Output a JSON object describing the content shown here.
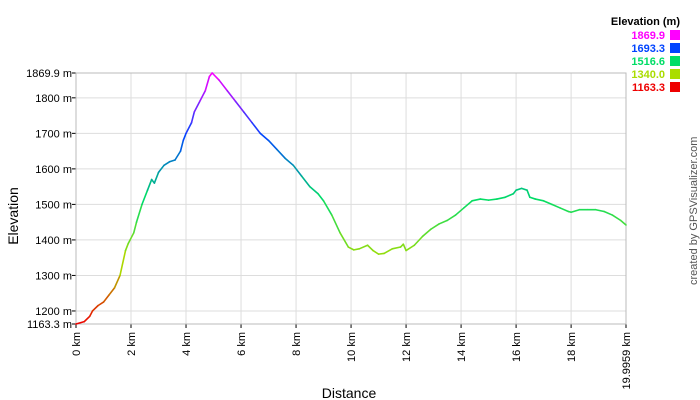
{
  "chart_data": {
    "type": "line",
    "xlabel": "Distance",
    "ylabel": "Elevation",
    "xlim": [
      0,
      19.9959
    ],
    "ylim": [
      1163.3,
      1869.9
    ],
    "x_ticks": [
      {
        "value": 0,
        "label": "0 km"
      },
      {
        "value": 2,
        "label": "2 km"
      },
      {
        "value": 4,
        "label": "4 km"
      },
      {
        "value": 6,
        "label": "6 km"
      },
      {
        "value": 8,
        "label": "8 km"
      },
      {
        "value": 10,
        "label": "10 km"
      },
      {
        "value": 12,
        "label": "12 km"
      },
      {
        "value": 14,
        "label": "14 km"
      },
      {
        "value": 16,
        "label": "16 km"
      },
      {
        "value": 18,
        "label": "18 km"
      },
      {
        "value": 19.9959,
        "label": "19.9959 km"
      }
    ],
    "y_ticks": [
      {
        "value": 1163.3,
        "label": "1163.3 m"
      },
      {
        "value": 1200,
        "label": "1200 m"
      },
      {
        "value": 1300,
        "label": "1300 m"
      },
      {
        "value": 1400,
        "label": "1400 m"
      },
      {
        "value": 1500,
        "label": "1500 m"
      },
      {
        "value": 1600,
        "label": "1600 m"
      },
      {
        "value": 1700,
        "label": "1700 m"
      },
      {
        "value": 1800,
        "label": "1800 m"
      },
      {
        "value": 1869.9,
        "label": "1869.9 m"
      }
    ],
    "grid": true,
    "legend": {
      "title": "Elevation (m)",
      "placement": "top-right",
      "entries": [
        {
          "label": "1869.9",
          "color": "#ff00ff"
        },
        {
          "label": "1693.3",
          "color": "#0044ff"
        },
        {
          "label": "1516.6",
          "color": "#00dd66"
        },
        {
          "label": "1340.0",
          "color": "#aadd00"
        },
        {
          "label": "1163.3",
          "color": "#ee0000"
        }
      ]
    },
    "series": [
      {
        "x": [
          0,
          0.3,
          0.5,
          0.6,
          0.8,
          1.0,
          1.2,
          1.4,
          1.6,
          1.8,
          1.9,
          2.1,
          2.2,
          2.4,
          2.6,
          2.75,
          2.85,
          3.0,
          3.2,
          3.4,
          3.6,
          3.8,
          3.9,
          4.0,
          4.2,
          4.3,
          4.5,
          4.7,
          4.85,
          4.95,
          5.2,
          5.5,
          5.8,
          6.1,
          6.4,
          6.7,
          7.0,
          7.3,
          7.6,
          7.9,
          8.2,
          8.5,
          8.8,
          9.0,
          9.3,
          9.6,
          9.9,
          10.1,
          10.3,
          10.6,
          10.8,
          11.0,
          11.2,
          11.5,
          11.8,
          11.9,
          12.0,
          12.3,
          12.6,
          12.9,
          13.2,
          13.5,
          13.8,
          14.1,
          14.4,
          14.7,
          15.0,
          15.3,
          15.6,
          15.9,
          16.0,
          16.2,
          16.4,
          16.5,
          16.7,
          17.0,
          17.3,
          17.6,
          17.9,
          18.0,
          18.3,
          18.6,
          18.9,
          19.2,
          19.5,
          19.8,
          19.9959
        ],
        "y": [
          1163.3,
          1170,
          1185,
          1200,
          1215,
          1225,
          1245,
          1265,
          1300,
          1370,
          1390,
          1420,
          1450,
          1500,
          1540,
          1570,
          1560,
          1590,
          1610,
          1620,
          1625,
          1650,
          1680,
          1700,
          1730,
          1760,
          1790,
          1820,
          1860,
          1869.9,
          1850,
          1820,
          1790,
          1760,
          1730,
          1700,
          1680,
          1655,
          1630,
          1610,
          1580,
          1550,
          1530,
          1510,
          1470,
          1420,
          1380,
          1372,
          1375,
          1385,
          1370,
          1360,
          1362,
          1375,
          1380,
          1388,
          1370,
          1385,
          1410,
          1430,
          1445,
          1455,
          1470,
          1490,
          1510,
          1515,
          1512,
          1515,
          1520,
          1530,
          1540,
          1545,
          1540,
          1520,
          1515,
          1510,
          1500,
          1490,
          1480,
          1478,
          1485,
          1485,
          1485,
          1480,
          1470,
          1455,
          1442
        ]
      }
    ]
  },
  "credit": "created by GPSVisualizer.com"
}
